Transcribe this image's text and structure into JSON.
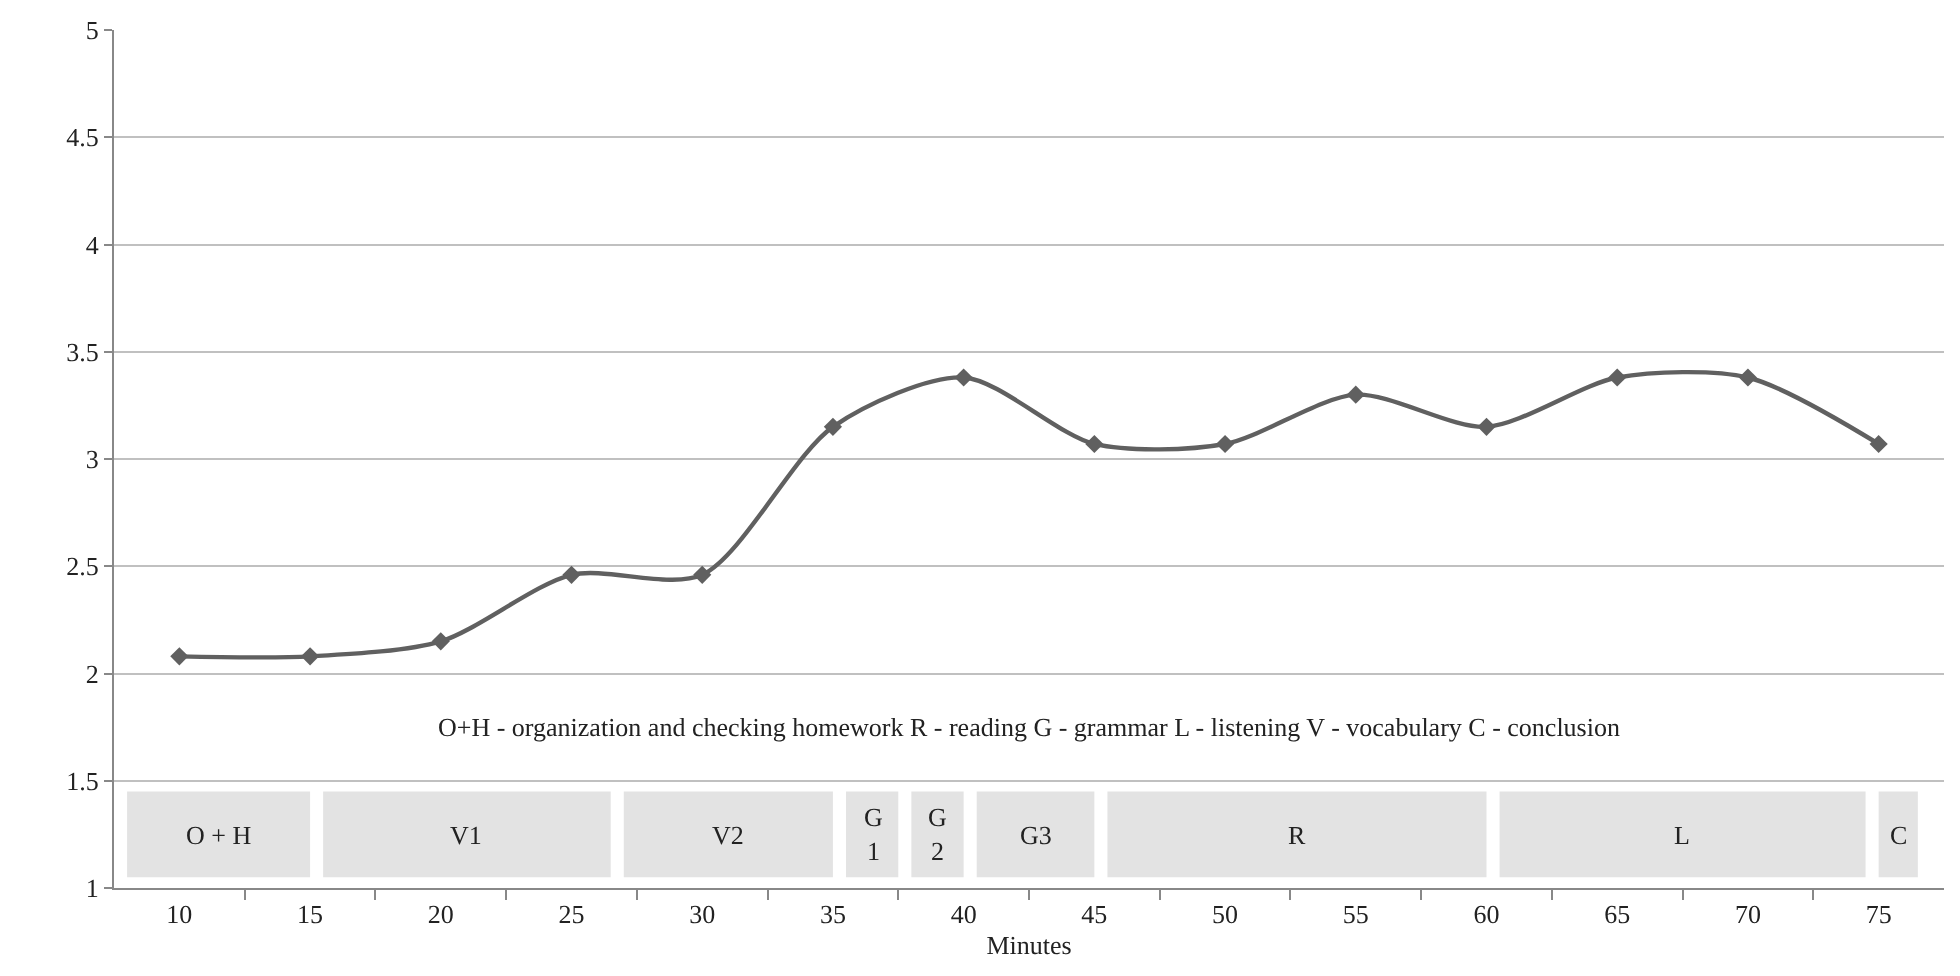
{
  "chart_data": {
    "type": "line",
    "xlabel": "Minutes",
    "x": [
      10,
      15,
      20,
      25,
      30,
      35,
      40,
      45,
      50,
      55,
      60,
      65,
      70,
      75
    ],
    "series": [
      {
        "color": "#606060",
        "values": [
          2.08,
          2.08,
          2.15,
          2.46,
          2.46,
          3.15,
          3.38,
          3.07,
          3.07,
          3.3,
          3.15,
          3.38,
          3.38,
          3.07
        ]
      }
    ],
    "xlim": [
      7.5,
      77.5
    ],
    "xticks": [
      10,
      15,
      20,
      25,
      30,
      35,
      40,
      45,
      50,
      55,
      60,
      65,
      70,
      75,
      {
        "value": 12.5,
        "label": null
      },
      {
        "value": 17.5,
        "label": null
      },
      {
        "value": 22.5,
        "label": null
      },
      {
        "value": 27.5,
        "label": null
      },
      {
        "value": 32.5,
        "label": null
      },
      {
        "value": 37.5,
        "label": null
      },
      {
        "value": 42.5,
        "label": null
      },
      {
        "value": 47.5,
        "label": null
      },
      {
        "value": 52.5,
        "label": null
      },
      {
        "value": 57.5,
        "label": null
      },
      {
        "value": 62.5,
        "label": null
      },
      {
        "value": 67.5,
        "label": null
      },
      {
        "value": 72.5,
        "label": null
      }
    ],
    "ylim": [
      1,
      5
    ],
    "yticks": [
      1,
      1.5,
      2,
      2.5,
      3,
      3.5,
      4,
      4.5,
      5
    ],
    "grid": "y",
    "marker": "diamond",
    "line_style": "solid",
    "bands": [
      {
        "axis": "x",
        "from": 8,
        "to": 15,
        "label": "O + H",
        "color": "#e3e3e3"
      },
      {
        "axis": "x",
        "from": 15.5,
        "to": 26.5,
        "label": "V1",
        "color": "#e3e3e3"
      },
      {
        "axis": "x",
        "from": 27,
        "to": 35,
        "label": "V2",
        "color": "#e3e3e3"
      },
      {
        "axis": "x",
        "from": 35.5,
        "to": 37.5,
        "label": "G\n1",
        "color": "#e3e3e3"
      },
      {
        "axis": "x",
        "from": 38,
        "to": 40,
        "label": "G\n2",
        "color": "#e3e3e3"
      },
      {
        "axis": "x",
        "from": 40.5,
        "to": 45,
        "label": "G3",
        "color": "#e3e3e3"
      },
      {
        "axis": "x",
        "from": 45.5,
        "to": 60,
        "label": "R",
        "color": "#e3e3e3"
      },
      {
        "axis": "x",
        "from": 60.5,
        "to": 74.5,
        "label": "L",
        "color": "#e3e3e3"
      },
      {
        "axis": "x",
        "from": 75,
        "to": 76.5,
        "label": "C",
        "color": "#e3e3e3"
      }
    ],
    "annotations": [
      "O+H - organization and checking homework R - reading G - grammar L - listening V - vocabulary C - conclusion"
    ]
  }
}
